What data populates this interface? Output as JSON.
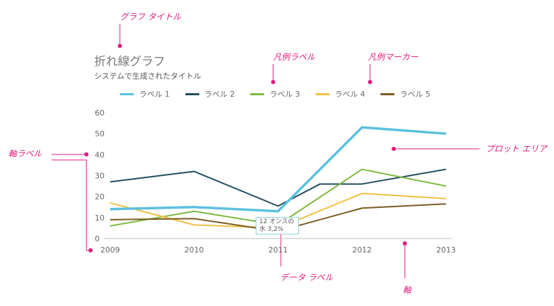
{
  "callouts": {
    "chart_title": "グラフ タイトル",
    "legend_label": "凡例ラベル",
    "legend_marker": "凡例マーカー",
    "plot_area": "プロット エリア",
    "axis_label": "軸ラベル",
    "data_label": "データ ラベル",
    "axis": "軸"
  },
  "tooltip": {
    "line1": "12 オンスの",
    "line2": "水 3,2% "
  },
  "chart_data": {
    "type": "line",
    "title": "折れ線グラフ",
    "subtitle": "システムで生成されたタイトル",
    "xlabel": "",
    "ylabel": "",
    "x": [
      "2009",
      "2010",
      "2011",
      "2012",
      "2013"
    ],
    "ylim": [
      0,
      60
    ],
    "yticks": [
      0,
      10,
      20,
      30,
      40,
      50,
      60
    ],
    "grid": false,
    "legend_position": "top",
    "series": [
      {
        "name": "ラベル 1",
        "color": "#5bc0de",
        "values": [
          14,
          15,
          13,
          53,
          50
        ]
      },
      {
        "name": "ラベル 2",
        "color": "#1f4e5f",
        "values": [
          27,
          32,
          15.5,
          26,
          33
        ]
      },
      {
        "name": "ラベル 3",
        "color": "#7cba3d",
        "values": [
          6,
          13,
          6.5,
          33,
          25
        ]
      },
      {
        "name": "ラベル 4",
        "color": "#f0c040",
        "values": [
          17,
          6.5,
          5,
          21.5,
          19
        ]
      },
      {
        "name": "ラベル 5",
        "color": "#7a5a1e",
        "values": [
          9,
          9.5,
          3.5,
          14.5,
          16.5
        ]
      }
    ],
    "series_extra_points": {
      "ラベル 2": [
        [
          2011.5,
          26
        ]
      ],
      "ラベル 4": [],
      "ラベル 5": []
    }
  }
}
